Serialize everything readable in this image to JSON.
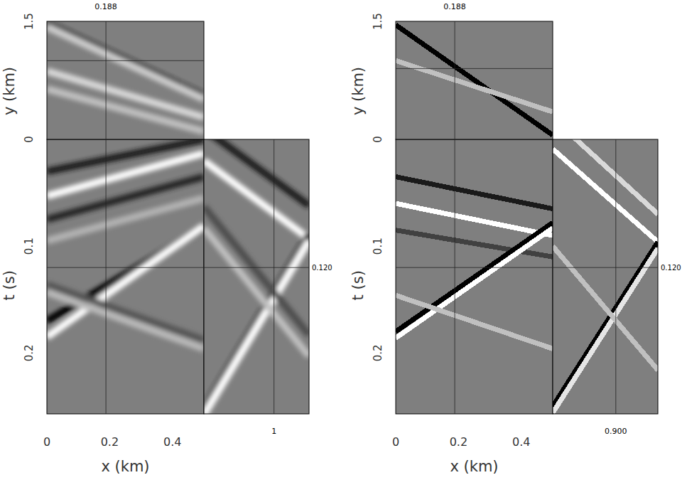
{
  "chart_data": {
    "type": "cube",
    "panels": [
      {
        "line_style": "smooth",
        "x_label": "x (km)",
        "y_label": "y (km)",
        "t_label": "t (s)",
        "xlim": [
          0,
          0.5
        ],
        "ylim": [
          0,
          1.5
        ],
        "tlim": [
          0,
          0.257
        ],
        "xticks": [
          0,
          0.2,
          0.4
        ],
        "yticks": [
          0,
          1.5
        ],
        "tticks": [
          0.1,
          0.2
        ],
        "slice": {
          "x": {
            "value": 0.188,
            "label": "0.188"
          },
          "y": {
            "value": 1,
            "label": "1"
          },
          "t": {
            "value": 0.12,
            "label": "0.120"
          }
        },
        "front_events": [
          {
            "x": [
              0,
              0.5
            ],
            "t": [
              0.03,
              0.0
            ],
            "amp": -0.8
          },
          {
            "x": [
              0,
              0.5
            ],
            "t": [
              0.053,
              0.013
            ],
            "amp": 1
          },
          {
            "x": [
              0,
              0.5
            ],
            "t": [
              0.075,
              0.035
            ],
            "amp": -0.7
          },
          {
            "x": [
              0,
              0.5
            ],
            "t": [
              0.095,
              0.055
            ],
            "amp": 0.4
          },
          {
            "x": [
              0,
              0.5
            ],
            "t": [
              0.17,
              0.083
            ],
            "amp": -1
          },
          {
            "x": [
              0,
              0.5
            ],
            "t": [
              0.185,
              0.081
            ],
            "amp": 1
          },
          {
            "x": [
              0,
              0.5
            ],
            "t": [
              0.136,
              0.188
            ],
            "amp": -0.35
          },
          {
            "x": [
              0,
              0.5
            ],
            "t": [
              0.143,
              0.196
            ],
            "amp": 0.45
          }
        ],
        "side_events": [
          {
            "y": [
              0,
              1.5
            ],
            "t": [
              -0.01,
              0.062
            ],
            "amp": -0.8
          },
          {
            "y": [
              0,
              1.5
            ],
            "t": [
              0.02,
              0.093
            ],
            "amp": 1
          },
          {
            "y": [
              0,
              1.5
            ],
            "t": [
              0.253,
              0.089
            ],
            "amp": -1
          },
          {
            "y": [
              0,
              1.5
            ],
            "t": [
              0.258,
              0.095
            ],
            "amp": 1
          },
          {
            "y": [
              0,
              1.5
            ],
            "t": [
              0.063,
              0.183
            ],
            "amp": -0.4
          },
          {
            "y": [
              0,
              1.5
            ],
            "t": [
              0.083,
              0.203
            ],
            "amp": 0.5
          }
        ],
        "top_events": [
          {
            "x": [
              0,
              0.5
            ],
            "y": [
              1.473,
              0.551
            ],
            "amp": -1
          },
          {
            "x": [
              0,
              0.5
            ],
            "y": [
              1.43,
              0.51
            ],
            "amp": 0.6
          },
          {
            "x": [
              0,
              0.5
            ],
            "y": [
              0.867,
              0.28
            ],
            "amp": 0.7
          },
          {
            "x": [
              0,
              0.5
            ],
            "y": [
              0.64,
              0.1
            ],
            "amp": 0.5
          }
        ]
      },
      {
        "line_style": "blocky",
        "x_label": "x (km)",
        "y_label": "y (km)",
        "t_label": "t (s)",
        "xlim": [
          0,
          0.5
        ],
        "ylim": [
          0,
          1.5
        ],
        "tlim": [
          0,
          0.257
        ],
        "xticks": [
          0,
          0.2,
          0.4
        ],
        "yticks": [
          0,
          1.5
        ],
        "tticks": [
          0.1,
          0.2
        ],
        "slice": {
          "x": {
            "value": 0.188,
            "label": "0.188"
          },
          "y": {
            "value": 0.9,
            "label": "0.900"
          },
          "t": {
            "value": 0.12,
            "label": "0.120"
          }
        },
        "front_events": [
          {
            "x": [
              0,
              0.5
            ],
            "t": [
              0.035,
              0.065
            ],
            "amp": -0.8
          },
          {
            "x": [
              0,
              0.5
            ],
            "t": [
              0.06,
              0.09
            ],
            "amp": 1
          },
          {
            "x": [
              0,
              0.5
            ],
            "t": [
              0.085,
              0.11
            ],
            "amp": -0.5
          },
          {
            "x": [
              0,
              0.5
            ],
            "t": [
              0.18,
              0.078
            ],
            "amp": -1
          },
          {
            "x": [
              0,
              0.5
            ],
            "t": [
              0.186,
              0.083
            ],
            "amp": 1
          },
          {
            "x": [
              0,
              0.5
            ],
            "t": [
              0.146,
              0.196
            ],
            "amp": 0.5
          }
        ],
        "side_events": [
          {
            "y": [
              0,
              1.5
            ],
            "t": [
              0.009,
              0.096
            ],
            "amp": 1
          },
          {
            "y": [
              0,
              1.5
            ],
            "t": [
              -0.02,
              0.07
            ],
            "amp": 0.7
          },
          {
            "y": [
              0,
              1.5
            ],
            "t": [
              0.25,
              0.096
            ],
            "amp": -1
          },
          {
            "y": [
              0,
              1.5
            ],
            "t": [
              0.256,
              0.102
            ],
            "amp": 0.8
          },
          {
            "y": [
              0,
              1.5
            ],
            "t": [
              0.1,
              0.216
            ],
            "amp": 0.5
          }
        ],
        "top_events": [
          {
            "x": [
              0,
              0.5
            ],
            "y": [
              1.455,
              0.054
            ],
            "amp": -1
          },
          {
            "x": [
              0,
              0.5
            ],
            "y": [
              1.0,
              0.35
            ],
            "amp": 0.5
          }
        ]
      }
    ]
  }
}
